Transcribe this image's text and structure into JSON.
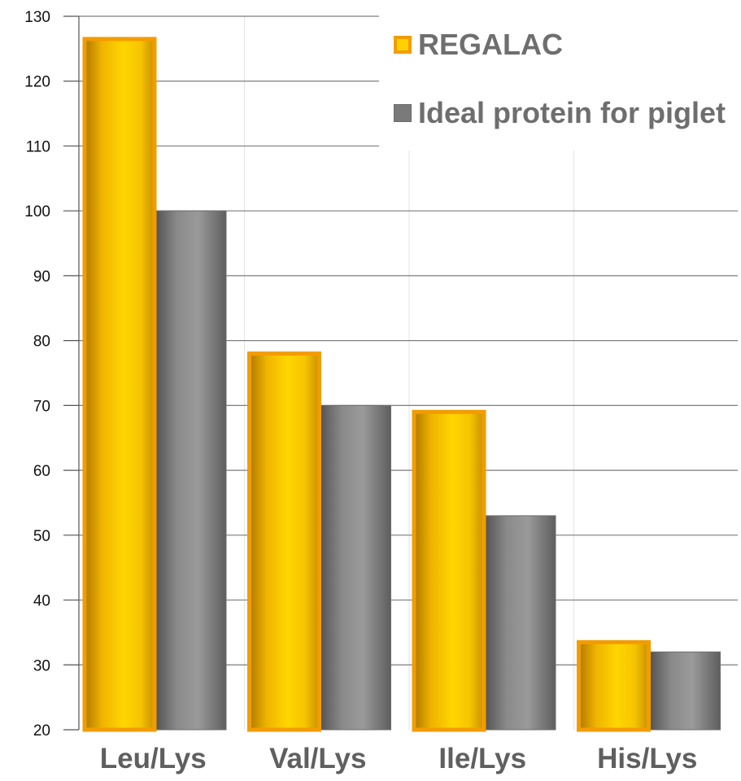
{
  "chart_data": {
    "type": "bar",
    "categories": [
      "Leu/Lys",
      "Val/Lys",
      "Ile/Lys",
      "His/Lys"
    ],
    "series": [
      {
        "name": "REGALAC",
        "values": [
          126.5,
          78,
          69,
          33.5
        ],
        "color": "#ffc600"
      },
      {
        "name": "Ideal protein for piglet",
        "values": [
          100,
          70,
          53,
          32
        ],
        "color": "#808080"
      }
    ],
    "ylim": [
      20,
      130
    ],
    "yticks": [
      20,
      30,
      40,
      50,
      60,
      70,
      80,
      90,
      100,
      110,
      120,
      130
    ],
    "grid": true,
    "legend_position": "top-right"
  }
}
